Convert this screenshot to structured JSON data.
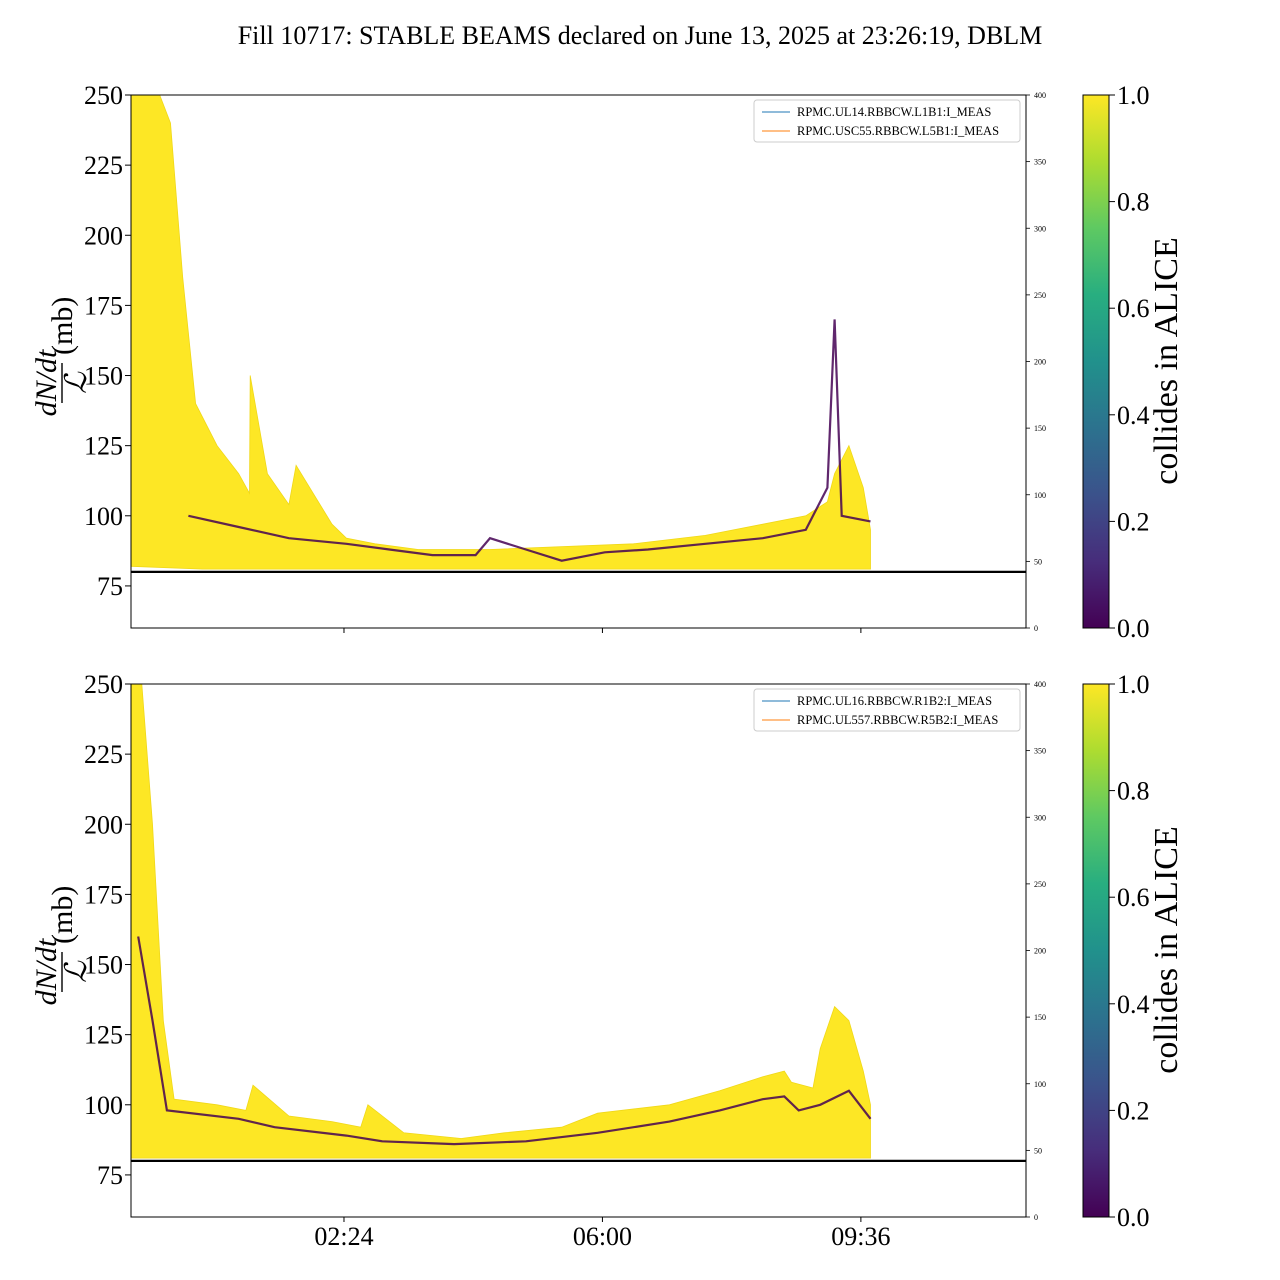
{
  "figure": {
    "title": "Fill 10717: STABLE BEAMS declared on June 13, 2025 at 23:26:19, DBLM",
    "x_tick_labels": [
      "02:24",
      "06:00",
      "09:36"
    ]
  },
  "chart_data": [
    {
      "type": "line",
      "panel": "top",
      "ylabel_num": "dN/dt",
      "ylabel_den": "ℒ",
      "ylabel_unit": "(mb)",
      "ylim": [
        60,
        250
      ],
      "yticks": [
        75,
        100,
        125,
        150,
        175,
        200,
        225,
        250
      ],
      "y2lim": [
        0,
        400
      ],
      "y2ticks": [
        0,
        50,
        100,
        150,
        200,
        250,
        300,
        350,
        400
      ],
      "xlim": [
        "2025-06-13T23:26",
        "2025-06-14T11:54"
      ],
      "xticks": [
        "2025-06-14T02:24",
        "2025-06-14T06:00",
        "2025-06-14T09:36"
      ],
      "reference_line_y": 80,
      "legend": [
        "RPMC.UL14.RBBCW.L1B1:I_MEAS",
        "RPMC.USC55.RBBCW.L5B1:I_MEAS"
      ],
      "legend_colors": [
        "#1f77b4",
        "#ff7f0e"
      ],
      "legend_placement": "top-right",
      "colorbar": {
        "label": "collides in ALICE",
        "range": [
          0.0,
          1.0
        ],
        "ticks": [
          "0.0",
          "0.2",
          "0.4",
          "0.6",
          "0.8",
          "1.0"
        ]
      },
      "upper_envelope": [
        [
          0.0,
          250
        ],
        [
          0.4,
          250
        ],
        [
          0.55,
          240
        ],
        [
          0.72,
          185
        ],
        [
          0.9,
          140
        ],
        [
          1.2,
          125
        ],
        [
          1.5,
          115
        ],
        [
          1.65,
          108
        ],
        [
          1.66,
          150
        ],
        [
          1.9,
          115
        ],
        [
          2.2,
          104
        ],
        [
          2.3,
          118
        ],
        [
          2.8,
          97
        ],
        [
          3.0,
          92
        ],
        [
          3.4,
          90
        ],
        [
          4.0,
          88
        ],
        [
          5.0,
          88
        ],
        [
          6.0,
          89
        ],
        [
          7.0,
          90
        ],
        [
          8.0,
          93
        ],
        [
          8.8,
          97
        ],
        [
          9.4,
          100
        ],
        [
          9.7,
          105
        ],
        [
          9.8,
          115
        ],
        [
          10.0,
          125
        ],
        [
          10.2,
          110
        ],
        [
          10.3,
          95
        ]
      ],
      "lower_envelope": [
        [
          0.0,
          82
        ],
        [
          1.0,
          81
        ],
        [
          2.0,
          81
        ],
        [
          5.0,
          81
        ],
        [
          10.3,
          81
        ]
      ],
      "dark_band": [
        [
          0.8,
          100
        ],
        [
          1.5,
          96
        ],
        [
          2.2,
          92
        ],
        [
          3.0,
          90
        ],
        [
          3.6,
          88
        ],
        [
          4.2,
          86
        ],
        [
          4.8,
          86
        ],
        [
          5.0,
          92
        ],
        [
          5.5,
          88
        ],
        [
          6.0,
          84
        ],
        [
          6.6,
          87
        ],
        [
          7.2,
          88
        ],
        [
          8.0,
          90
        ],
        [
          8.8,
          92
        ],
        [
          9.4,
          95
        ],
        [
          9.7,
          110
        ],
        [
          9.8,
          170
        ],
        [
          9.9,
          100
        ],
        [
          10.3,
          98
        ]
      ]
    },
    {
      "type": "line",
      "panel": "bottom",
      "ylabel_num": "dN/dt",
      "ylabel_den": "ℒ",
      "ylabel_unit": "(mb)",
      "ylim": [
        60,
        250
      ],
      "yticks": [
        75,
        100,
        125,
        150,
        175,
        200,
        225,
        250
      ],
      "y2lim": [
        0,
        400
      ],
      "y2ticks": [
        0,
        50,
        100,
        150,
        200,
        250,
        300,
        350,
        400
      ],
      "xlim": [
        "2025-06-13T23:26",
        "2025-06-14T11:54"
      ],
      "xticks": [
        "2025-06-14T02:24",
        "2025-06-14T06:00",
        "2025-06-14T09:36"
      ],
      "reference_line_y": 80,
      "legend": [
        "RPMC.UL16.RBBCW.R1B2:I_MEAS",
        "RPMC.UL557.RBBCW.R5B2:I_MEAS"
      ],
      "legend_colors": [
        "#1f77b4",
        "#ff7f0e"
      ],
      "legend_placement": "top-right",
      "colorbar": {
        "label": "collides in ALICE",
        "range": [
          0.0,
          1.0
        ],
        "ticks": [
          "0.0",
          "0.2",
          "0.4",
          "0.6",
          "0.8",
          "1.0"
        ]
      },
      "upper_envelope": [
        [
          0.0,
          250
        ],
        [
          0.15,
          250
        ],
        [
          0.3,
          200
        ],
        [
          0.45,
          130
        ],
        [
          0.6,
          102
        ],
        [
          1.2,
          100
        ],
        [
          1.6,
          98
        ],
        [
          1.7,
          107
        ],
        [
          2.2,
          96
        ],
        [
          2.8,
          94
        ],
        [
          3.2,
          92
        ],
        [
          3.3,
          100
        ],
        [
          3.8,
          90
        ],
        [
          4.6,
          88
        ],
        [
          5.2,
          90
        ],
        [
          6.0,
          92
        ],
        [
          6.5,
          97
        ],
        [
          7.5,
          100
        ],
        [
          8.2,
          105
        ],
        [
          8.8,
          110
        ],
        [
          9.1,
          112
        ],
        [
          9.2,
          108
        ],
        [
          9.5,
          106
        ],
        [
          9.6,
          120
        ],
        [
          9.8,
          135
        ],
        [
          10.0,
          130
        ],
        [
          10.2,
          112
        ],
        [
          10.3,
          100
        ]
      ],
      "lower_envelope": [
        [
          0.0,
          81
        ],
        [
          10.3,
          81
        ]
      ],
      "dark_band": [
        [
          0.1,
          160
        ],
        [
          0.3,
          130
        ],
        [
          0.5,
          98
        ],
        [
          1.5,
          95
        ],
        [
          2.0,
          92
        ],
        [
          3.0,
          89
        ],
        [
          3.5,
          87
        ],
        [
          4.5,
          86
        ],
        [
          5.5,
          87
        ],
        [
          6.5,
          90
        ],
        [
          7.5,
          94
        ],
        [
          8.2,
          98
        ],
        [
          8.8,
          102
        ],
        [
          9.1,
          103
        ],
        [
          9.3,
          98
        ],
        [
          9.6,
          100
        ],
        [
          10.0,
          105
        ],
        [
          10.3,
          95
        ]
      ]
    }
  ]
}
